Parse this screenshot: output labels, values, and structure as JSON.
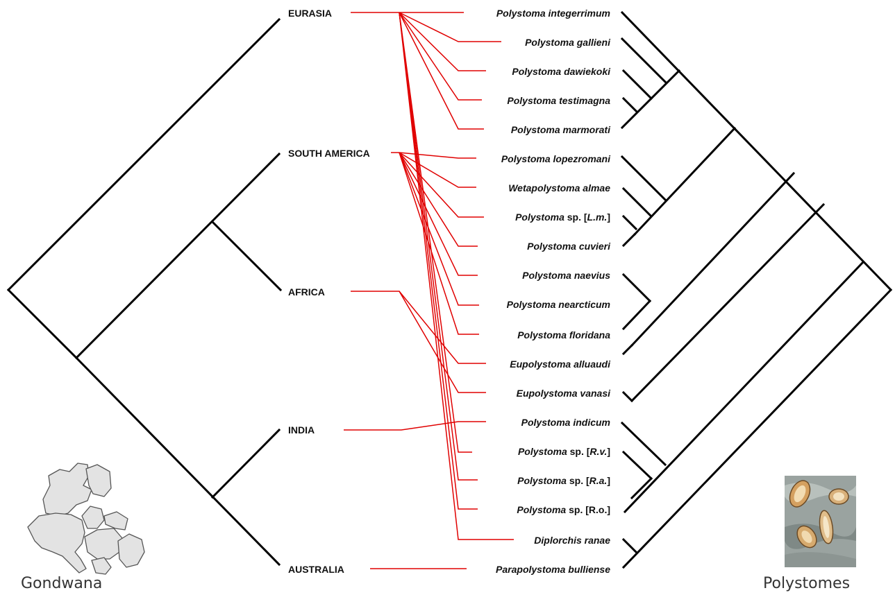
{
  "colors": {
    "tree": "#000000",
    "association": "#e00000",
    "map_fill": "#e3e3e3",
    "map_stroke": "#555555"
  },
  "host_regions": [
    {
      "id": "eurasia",
      "label": "EURASIA"
    },
    {
      "id": "south_america",
      "label": "SOUTH AMERICA"
    },
    {
      "id": "africa",
      "label": "AFRICA"
    },
    {
      "id": "india",
      "label": "INDIA"
    },
    {
      "id": "australia",
      "label": "AUSTRALIA"
    }
  ],
  "parasite_taxa": [
    {
      "id": "t0",
      "parts": [
        {
          "text": "Polystoma integerrimum",
          "italic": true
        }
      ],
      "region": "eurasia"
    },
    {
      "id": "t1",
      "parts": [
        {
          "text": "Polystoma gallieni",
          "italic": true
        }
      ],
      "region": "eurasia"
    },
    {
      "id": "t2",
      "parts": [
        {
          "text": "Polystoma dawiekoki",
          "italic": true
        }
      ],
      "region": "eurasia"
    },
    {
      "id": "t3",
      "parts": [
        {
          "text": "Polystoma testimagna",
          "italic": true
        }
      ],
      "region": "eurasia"
    },
    {
      "id": "t4",
      "parts": [
        {
          "text": "Polystoma marmorati",
          "italic": true
        }
      ],
      "region": "eurasia"
    },
    {
      "id": "t5",
      "parts": [
        {
          "text": "Polystoma lopezromani",
          "italic": true
        }
      ],
      "region": "south_america"
    },
    {
      "id": "t6",
      "parts": [
        {
          "text": "Wetapolystoma almae",
          "italic": true
        }
      ],
      "region": "south_america"
    },
    {
      "id": "t7",
      "parts": [
        {
          "text": "Polystoma",
          "italic": true
        },
        {
          "text": " sp. [",
          "italic": false
        },
        {
          "text": "L.m.",
          "italic": true
        },
        {
          "text": "]",
          "italic": false
        }
      ],
      "region": "south_america"
    },
    {
      "id": "t8",
      "parts": [
        {
          "text": "Polystoma cuvieri",
          "italic": true
        }
      ],
      "region": "south_america"
    },
    {
      "id": "t9",
      "parts": [
        {
          "text": "Polystoma naevius",
          "italic": true
        }
      ],
      "region": "south_america"
    },
    {
      "id": "t10",
      "parts": [
        {
          "text": "Polystoma nearcticum",
          "italic": true
        }
      ],
      "region": "south_america"
    },
    {
      "id": "t11",
      "parts": [
        {
          "text": "Polystoma floridana",
          "italic": true
        }
      ],
      "region": "south_america"
    },
    {
      "id": "t12",
      "parts": [
        {
          "text": "Eupolystoma alluaudi",
          "italic": true
        }
      ],
      "region": "africa"
    },
    {
      "id": "t13",
      "parts": [
        {
          "text": "Eupolystoma vanasi",
          "italic": true
        }
      ],
      "region": "africa"
    },
    {
      "id": "t14",
      "parts": [
        {
          "text": "Polystoma indicum",
          "italic": true
        }
      ],
      "region": "india"
    },
    {
      "id": "t15",
      "parts": [
        {
          "text": "Polystoma",
          "italic": true
        },
        {
          "text": " sp. [",
          "italic": false
        },
        {
          "text": "R.v.",
          "italic": true
        },
        {
          "text": "]",
          "italic": false
        }
      ],
      "region": "eurasia"
    },
    {
      "id": "t16",
      "parts": [
        {
          "text": "Polystoma",
          "italic": true
        },
        {
          "text": " sp. [",
          "italic": false
        },
        {
          "text": "R.a.",
          "italic": true
        },
        {
          "text": "]",
          "italic": false
        }
      ],
      "region": "eurasia"
    },
    {
      "id": "t17",
      "parts": [
        {
          "text": "Polystoma",
          "italic": true
        },
        {
          "text": " sp. [R.o.]",
          "italic": false
        }
      ],
      "region": "eurasia"
    },
    {
      "id": "t18",
      "parts": [
        {
          "text": "Diplorchis ranae",
          "italic": true
        }
      ],
      "region": "eurasia"
    },
    {
      "id": "t19",
      "parts": [
        {
          "text": "Parapolystoma bulliense",
          "italic": true
        }
      ],
      "region": "australia"
    }
  ],
  "footer": {
    "left_label": "Gondwana",
    "right_label": "Polystomes"
  },
  "icons": {
    "left": "gondwana-map-icon",
    "right": "polystome-photo-icon"
  }
}
